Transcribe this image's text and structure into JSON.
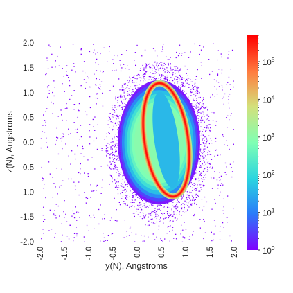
{
  "chart_data": {
    "type": "heatmap",
    "title": "",
    "xlabel": "y(N), Angstroms",
    "ylabel": "z(N), Angstroms",
    "xlim": [
      -2.0,
      2.0
    ],
    "ylim": [
      -2.0,
      2.0
    ],
    "x_ticks": [
      "-2.0",
      "-1.5",
      "-1.0",
      "-0.5",
      "0.0",
      "0.5",
      "1.0",
      "1.5",
      "2.0"
    ],
    "y_ticks": [
      "-2.0",
      "-1.5",
      "-1.0",
      "-0.5",
      "0.0",
      "0.5",
      "1.0",
      "1.5",
      "2.0"
    ],
    "grid": false,
    "colorbar": {
      "scale": "log",
      "range": [
        1,
        500000
      ],
      "tick_labels": [
        {
          "base": "10",
          "exp": "0",
          "value": 1
        },
        {
          "base": "10",
          "exp": "1",
          "value": 10
        },
        {
          "base": "10",
          "exp": "2",
          "value": 100
        },
        {
          "base": "10",
          "exp": "3",
          "value": 1000
        },
        {
          "base": "10",
          "exp": "4",
          "value": 10000
        },
        {
          "base": "10",
          "exp": "5",
          "value": 100000
        }
      ],
      "colormap": [
        "#8000ff",
        "#2a7cf9",
        "#2ad4e0",
        "#80ffb4",
        "#d4e07a",
        "#ff7c3f",
        "#ff0000"
      ]
    },
    "density": {
      "center": [
        0.45,
        0.0
      ],
      "semi_axis_y": 0.85,
      "semi_axis_z": 1.25,
      "ring_center": [
        0.6,
        0.05
      ],
      "ring_semi_axis_y": 0.45,
      "ring_semi_axis_z": 1.15,
      "ring_tilt_deg": -8,
      "peak_density": 500000
    }
  }
}
